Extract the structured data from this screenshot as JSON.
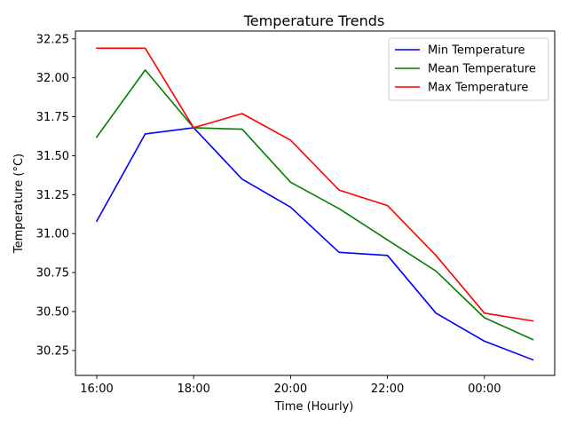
{
  "chart_data": {
    "type": "line",
    "title": "Temperature Trends",
    "xlabel": "Time (Hourly)",
    "ylabel": "Temperature (°C)",
    "x": [
      "16:00",
      "17:00",
      "18:00",
      "19:00",
      "20:00",
      "21:00",
      "22:00",
      "23:00",
      "00:00",
      "01:00"
    ],
    "x_tick_labels": [
      "16:00",
      "18:00",
      "20:00",
      "22:00",
      "00:00"
    ],
    "y_ticks": [
      "30.25",
      "30.50",
      "30.75",
      "31.00",
      "31.25",
      "31.50",
      "31.75",
      "32.00",
      "32.25"
    ],
    "ylim": [
      30.09,
      32.3
    ],
    "grid": false,
    "legend_position": "upper right",
    "series": [
      {
        "name": "Min Temperature",
        "color": "#0000ff",
        "values": [
          31.08,
          31.64,
          31.68,
          31.35,
          31.17,
          30.88,
          30.86,
          30.49,
          30.31,
          30.19
        ]
      },
      {
        "name": "Mean Temperature",
        "color": "#008000",
        "values": [
          31.62,
          32.05,
          31.68,
          31.67,
          31.33,
          31.16,
          30.96,
          30.76,
          30.46,
          30.32
        ]
      },
      {
        "name": "Max Temperature",
        "color": "#ff0000",
        "values": [
          32.19,
          32.19,
          31.68,
          31.77,
          31.6,
          31.28,
          31.18,
          30.86,
          30.49,
          30.44
        ]
      }
    ]
  }
}
